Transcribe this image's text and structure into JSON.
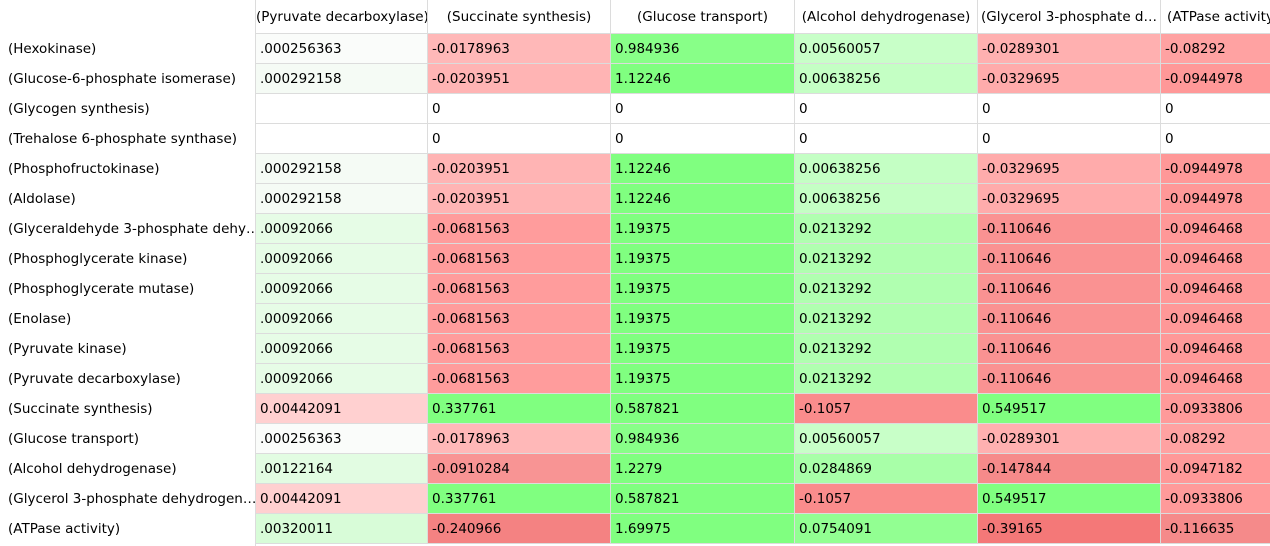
{
  "header": {
    "columns": [
      "(Pyruvate decarboxylase)",
      "(Succinate synthesis)",
      "(Glucose transport)",
      "(Alcohol dehydrogenase)",
      "(Glycerol 3-phosphate d…",
      "(ATPase activity"
    ]
  },
  "rows": [
    {
      "label": "(Hexokinase)",
      "cells": [
        ".000256363",
        "-0.0178963",
        "0.984936",
        "0.00560057",
        "-0.0289301",
        "-0.08292"
      ],
      "colors": [
        "#fafcfa",
        "#ffb8b8",
        "#88ff88",
        "#c8ffc8",
        "#ffb0b0",
        "#ffa2a2"
      ]
    },
    {
      "label": "(Glucose-6-phosphate isomerase)",
      "cells": [
        ".000292158",
        "-0.0203951",
        "1.12246",
        "0.00638256",
        "-0.0329695",
        "-0.0944978"
      ],
      "colors": [
        "#f5fbf5",
        "#ffb4b4",
        "#80ff80",
        "#c4ffc4",
        "#ffabab",
        "#ff9898"
      ]
    },
    {
      "label": "(Glycogen synthesis)",
      "cells": [
        null,
        "0",
        "0",
        "0",
        "0",
        "0"
      ],
      "colors": [
        "#ffffff",
        "#ffffff",
        "#ffffff",
        "#ffffff",
        "#ffffff",
        "#ffffff"
      ]
    },
    {
      "label": "(Trehalose 6-phosphate synthase)",
      "cells": [
        null,
        "0",
        "0",
        "0",
        "0",
        "0"
      ],
      "colors": [
        "#ffffff",
        "#ffffff",
        "#ffffff",
        "#ffffff",
        "#ffffff",
        "#ffffff"
      ]
    },
    {
      "label": "(Phosphofructokinase)",
      "cells": [
        ".000292158",
        "-0.0203951",
        "1.12246",
        "0.00638256",
        "-0.0329695",
        "-0.0944978"
      ],
      "colors": [
        "#f5fbf5",
        "#ffb4b4",
        "#80ff80",
        "#c4ffc4",
        "#ffabab",
        "#ff9898"
      ]
    },
    {
      "label": "(Aldolase)",
      "cells": [
        ".000292158",
        "-0.0203951",
        "1.12246",
        "0.00638256",
        "-0.0329695",
        "-0.0944978"
      ],
      "colors": [
        "#f5fbf5",
        "#ffb4b4",
        "#80ff80",
        "#c4ffc4",
        "#ffabab",
        "#ff9898"
      ]
    },
    {
      "label": "(Glyceraldehyde 3-phosphate dehy…",
      "cells": [
        ".00092066",
        "-0.0681563",
        "1.19375",
        "0.0213292",
        "-0.110646",
        "-0.0946468"
      ],
      "colors": [
        "#e6fce6",
        "#ff9c9c",
        "#80ff80",
        "#b0ffb0",
        "#fa9292",
        "#ff9898"
      ]
    },
    {
      "label": "(Phosphoglycerate kinase)",
      "cells": [
        ".00092066",
        "-0.0681563",
        "1.19375",
        "0.0213292",
        "-0.110646",
        "-0.0946468"
      ],
      "colors": [
        "#e6fce6",
        "#ff9c9c",
        "#80ff80",
        "#b0ffb0",
        "#fa9292",
        "#ff9898"
      ]
    },
    {
      "label": "(Phosphoglycerate mutase)",
      "cells": [
        ".00092066",
        "-0.0681563",
        "1.19375",
        "0.0213292",
        "-0.110646",
        "-0.0946468"
      ],
      "colors": [
        "#e6fce6",
        "#ff9c9c",
        "#80ff80",
        "#b0ffb0",
        "#fa9292",
        "#ff9898"
      ]
    },
    {
      "label": "(Enolase)",
      "cells": [
        ".00092066",
        "-0.0681563",
        "1.19375",
        "0.0213292",
        "-0.110646",
        "-0.0946468"
      ],
      "colors": [
        "#e6fce6",
        "#ff9c9c",
        "#80ff80",
        "#b0ffb0",
        "#fa9292",
        "#ff9898"
      ]
    },
    {
      "label": "(Pyruvate kinase)",
      "cells": [
        ".00092066",
        "-0.0681563",
        "1.19375",
        "0.0213292",
        "-0.110646",
        "-0.0946468"
      ],
      "colors": [
        "#e6fce6",
        "#ff9c9c",
        "#80ff80",
        "#b0ffb0",
        "#fa9292",
        "#ff9898"
      ]
    },
    {
      "label": "(Pyruvate decarboxylase)",
      "cells": [
        ".00092066",
        "-0.0681563",
        "1.19375",
        "0.0213292",
        "-0.110646",
        "-0.0946468"
      ],
      "colors": [
        "#e6fce6",
        "#ff9c9c",
        "#80ff80",
        "#b0ffb0",
        "#fa9292",
        "#ff9898"
      ]
    },
    {
      "label": "(Succinate synthesis)",
      "cells": [
        "0.00442091",
        "0.337761",
        "0.587821",
        "-0.1057",
        "0.549517",
        "-0.0933806"
      ],
      "colors": [
        "#ffd0d0",
        "#80ff80",
        "#80ff80",
        "#fa8c8c",
        "#80ff80",
        "#ff9a9a"
      ]
    },
    {
      "label": "(Glucose transport)",
      "cells": [
        ".000256363",
        "-0.0178963",
        "0.984936",
        "0.00560057",
        "-0.0289301",
        "-0.08292"
      ],
      "colors": [
        "#fafcfa",
        "#ffb8b8",
        "#88ff88",
        "#c8ffc8",
        "#ffb0b0",
        "#ffa2a2"
      ]
    },
    {
      "label": "(Alcohol dehydrogenase)",
      "cells": [
        ".00122164",
        "-0.0910284",
        "1.2279",
        "0.0284869",
        "-0.147844",
        "-0.0947182"
      ],
      "colors": [
        "#e2fce2",
        "#f89494",
        "#80ff80",
        "#a8ffa8",
        "#f68a8a",
        "#ff9898"
      ]
    },
    {
      "label": "(Glycerol 3-phosphate dehydrogen…",
      "cells": [
        "0.00442091",
        "0.337761",
        "0.587821",
        "-0.1057",
        "0.549517",
        "-0.0933806"
      ],
      "colors": [
        "#ffd0d0",
        "#80ff80",
        "#80ff80",
        "#fa8c8c",
        "#80ff80",
        "#ff9a9a"
      ]
    },
    {
      "label": "(ATPase activity)",
      "cells": [
        ".00320011",
        "-0.240966",
        "1.69975",
        "0.0754091",
        "-0.39165",
        "-0.116635"
      ],
      "colors": [
        "#d8fcd8",
        "#f48282",
        "#80ff80",
        "#92ff92",
        "#f47878",
        "#f58a8a"
      ]
    }
  ]
}
